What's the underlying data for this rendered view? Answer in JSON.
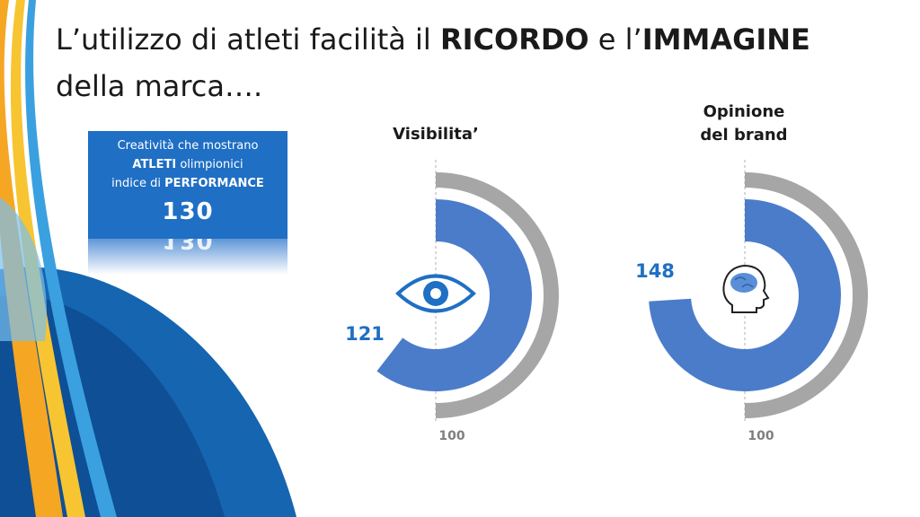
{
  "title": {
    "seg1": "L’utilizzo di atleti facilità il ",
    "seg2": "RICORDO",
    "seg3": " e l’",
    "seg4": "IMMAGINE",
    "seg5": "della marca…."
  },
  "card": {
    "line1": "Creatività che mostrano",
    "line2_bold": "ATLETI",
    "line2_rest": " olimpionici",
    "line3_pre": "indice di ",
    "line3_bold": "PERFORMANCE",
    "value": "130"
  },
  "colors": {
    "primary": "#4a7cca",
    "reference": "#a6a6a6",
    "label": "#1f6fc4",
    "card": "#1f6fc4"
  },
  "icons": [
    "eye-icon",
    "head-brain-icon"
  ],
  "chart_data": [
    {
      "type": "radial-bar",
      "title": "Visibilita’",
      "series": [
        {
          "value": 121,
          "label": "121"
        },
        {
          "value": 100,
          "label": "100"
        }
      ]
    },
    {
      "type": "radial-bar",
      "title_lines": [
        "Opinione",
        "del brand"
      ],
      "series": [
        {
          "value": 148,
          "label": "148"
        },
        {
          "value": 100,
          "label": "100"
        }
      ]
    }
  ]
}
